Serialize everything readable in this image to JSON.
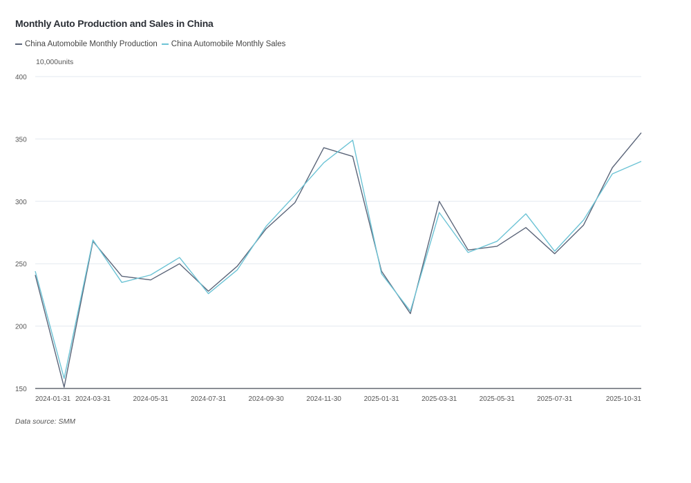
{
  "title": "Monthly Auto Production and Sales in China",
  "unit": "10,000units",
  "source": "Data source:  SMM",
  "colors": {
    "production": "#5a6478",
    "sales": "#6cc3d5",
    "grid": "#e3e8ef",
    "axis": "#555555"
  },
  "chart_data": {
    "type": "line",
    "title": "Monthly Auto Production and Sales in China",
    "ylabel": "10,000units",
    "xlabel": "",
    "ylim": [
      150,
      400
    ],
    "yticks": [
      150,
      200,
      250,
      300,
      350,
      400
    ],
    "grid": true,
    "legend_position": "top-left",
    "x": [
      "2024-01-31",
      "2024-02-29",
      "2024-03-31",
      "2024-04-30",
      "2024-05-31",
      "2024-06-30",
      "2024-07-31",
      "2024-08-31",
      "2024-09-30",
      "2024-10-31",
      "2024-11-30",
      "2024-12-31",
      "2025-01-31",
      "2025-02-28",
      "2025-03-31",
      "2025-04-30",
      "2025-05-31",
      "2025-06-30",
      "2025-07-31",
      "2025-08-31",
      "2025-09-30",
      "2025-10-31"
    ],
    "x_tick_labels": [
      "2024-01-31",
      "2024-03-31",
      "2024-05-31",
      "2024-07-31",
      "2024-09-30",
      "2024-11-30",
      "2025-01-31",
      "2025-03-31",
      "2025-05-31",
      "2025-07-31",
      "2025-10-31"
    ],
    "series": [
      {
        "name": "China Automobile Monthly Production",
        "values": [
          241,
          151,
          268,
          240,
          237,
          250,
          228,
          248,
          278,
          299,
          343,
          336,
          244,
          210,
          300,
          261,
          264,
          279,
          258,
          281,
          327,
          355
        ]
      },
      {
        "name": "China Automobile Monthly Sales",
        "values": [
          244,
          158,
          269,
          235,
          241,
          255,
          226,
          245,
          280,
          305,
          331,
          349,
          242,
          212,
          291,
          259,
          268,
          290,
          260,
          285,
          322,
          332
        ]
      }
    ]
  }
}
